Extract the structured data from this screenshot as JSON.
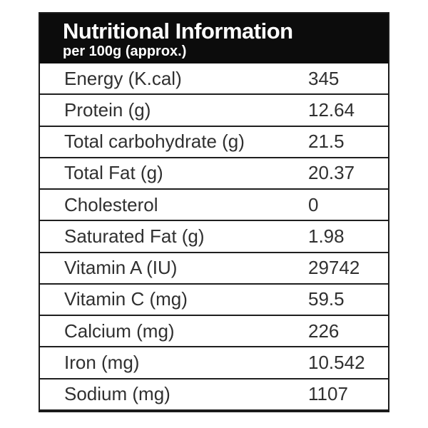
{
  "header": {
    "title": "Nutritional Information",
    "subtitle": "per 100g (approx.)"
  },
  "table": {
    "rows": [
      {
        "label": "Energy (K.cal)",
        "value": "345"
      },
      {
        "label": "Protein (g)",
        "value": "12.64"
      },
      {
        "label": "Total carbohydrate (g)",
        "value": "21.5"
      },
      {
        "label": "Total Fat (g)",
        "value": "20.37"
      },
      {
        "label": "Cholesterol",
        "value": "0"
      },
      {
        "label": "Saturated Fat (g)",
        "value": "1.98"
      },
      {
        "label": "Vitamin A (IU)",
        "value": "29742"
      },
      {
        "label": "Vitamin C (mg)",
        "value": "59.5"
      },
      {
        "label": "Calcium (mg)",
        "value": "226"
      },
      {
        "label": "Iron (mg)",
        "value": "10.542"
      },
      {
        "label": "Sodium (mg)",
        "value": "1107"
      }
    ]
  },
  "colors": {
    "header_bg": "#0c0c0c",
    "header_text": "#ffffff",
    "body_text": "#303030",
    "border": "#1b1b1b",
    "background": "#ffffff"
  }
}
